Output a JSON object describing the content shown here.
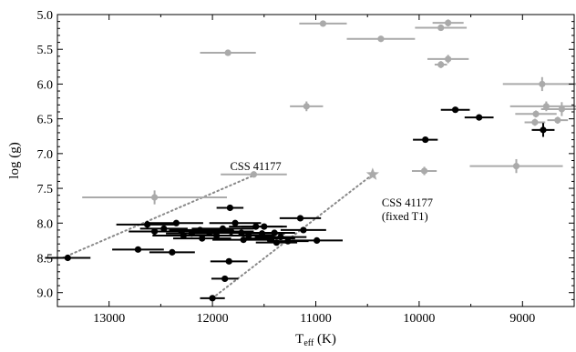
{
  "chart_data": {
    "type": "scatter",
    "title": "",
    "xlabel": "T",
    "xlabel_sub": "eff",
    "xlabel_unit": " (K)",
    "ylabel": "log (g)",
    "xlim": [
      13500,
      8500
    ],
    "ylim": [
      5.0,
      9.2
    ],
    "x_inverted": true,
    "y_inverted": true,
    "xticks": [
      13000,
      12000,
      11000,
      10000,
      9000
    ],
    "yticks": [
      5.0,
      5.5,
      6.0,
      6.5,
      7.0,
      7.5,
      8.0,
      8.5,
      9.0
    ],
    "xtick_labels": [
      "13000",
      "12000",
      "11000",
      "10000",
      "9000"
    ],
    "ytick_labels": [
      "5.0",
      "5.5",
      "6.0",
      "6.5",
      "7.0",
      "7.5",
      "8.0",
      "8.5",
      "9.0"
    ],
    "grid": false,
    "colors": {
      "black_series": "#000000",
      "gray_series": "#aaaaaa",
      "line": "#888888"
    },
    "annotations": [
      {
        "id": "css1",
        "lines": [
          "CSS 41177"
        ],
        "x": 11900,
        "y": 7.2
      },
      {
        "id": "css2",
        "lines": [
          "CSS 41177",
          "(fixed T1)"
        ],
        "x": 10450,
        "y": 7.5
      }
    ],
    "lines": [
      {
        "name": "css-line-1",
        "points": [
          [
            13450,
            8.5
          ],
          [
            11580,
            7.3
          ]
        ],
        "style": "dotted"
      },
      {
        "name": "css-line-2",
        "points": [
          [
            12000,
            9.08
          ],
          [
            10450,
            7.3
          ]
        ],
        "style": "dotted"
      }
    ],
    "star": {
      "x": 10450,
      "y": 7.3
    },
    "series": [
      {
        "color": "black",
        "points": [
          {
            "x": 13400,
            "y": 8.5,
            "xerr": 220,
            "yerr": 0.04
          },
          {
            "x": 12720,
            "y": 8.38,
            "xerr": 250,
            "yerr": 0.04
          },
          {
            "x": 12390,
            "y": 8.42,
            "xerr": 220,
            "yerr": 0.04
          },
          {
            "x": 12000,
            "y": 9.08,
            "xerr": 120,
            "yerr": 0.04
          },
          {
            "x": 11880,
            "y": 8.8,
            "xerr": 130,
            "yerr": 0.04
          },
          {
            "x": 11840,
            "y": 8.55,
            "xerr": 180,
            "yerr": 0.04
          },
          {
            "x": 11830,
            "y": 7.78,
            "xerr": 130,
            "yerr": 0.04
          },
          {
            "x": 12630,
            "y": 8.02,
            "xerr": 300,
            "yerr": 0.05
          },
          {
            "x": 12560,
            "y": 8.12,
            "xerr": 250,
            "yerr": 0.05
          },
          {
            "x": 12470,
            "y": 8.08,
            "xerr": 230,
            "yerr": 0.04
          },
          {
            "x": 12350,
            "y": 8.0,
            "xerr": 260,
            "yerr": 0.04
          },
          {
            "x": 12280,
            "y": 8.18,
            "xerr": 300,
            "yerr": 0.04
          },
          {
            "x": 12200,
            "y": 8.15,
            "xerr": 250,
            "yerr": 0.04
          },
          {
            "x": 12120,
            "y": 8.1,
            "xerr": 300,
            "yerr": 0.04
          },
          {
            "x": 12030,
            "y": 8.14,
            "xerr": 200,
            "yerr": 0.04
          },
          {
            "x": 11960,
            "y": 8.18,
            "xerr": 220,
            "yerr": 0.04
          },
          {
            "x": 11900,
            "y": 8.08,
            "xerr": 300,
            "yerr": 0.04
          },
          {
            "x": 11820,
            "y": 8.12,
            "xerr": 220,
            "yerr": 0.04
          },
          {
            "x": 11780,
            "y": 8.0,
            "xerr": 250,
            "yerr": 0.04
          },
          {
            "x": 11720,
            "y": 8.14,
            "xerr": 200,
            "yerr": 0.04
          },
          {
            "x": 11650,
            "y": 8.18,
            "xerr": 250,
            "yerr": 0.04
          },
          {
            "x": 11580,
            "y": 8.05,
            "xerr": 260,
            "yerr": 0.04
          },
          {
            "x": 11520,
            "y": 8.15,
            "xerr": 220,
            "yerr": 0.04
          },
          {
            "x": 11450,
            "y": 8.22,
            "xerr": 250,
            "yerr": 0.04
          },
          {
            "x": 11400,
            "y": 8.14,
            "xerr": 200,
            "yerr": 0.04
          },
          {
            "x": 11380,
            "y": 8.28,
            "xerr": 200,
            "yerr": 0.04
          },
          {
            "x": 11340,
            "y": 8.2,
            "xerr": 250,
            "yerr": 0.04
          },
          {
            "x": 11270,
            "y": 8.26,
            "xerr": 200,
            "yerr": 0.04
          },
          {
            "x": 11120,
            "y": 8.1,
            "xerr": 220,
            "yerr": 0.04
          },
          {
            "x": 11150,
            "y": 7.93,
            "xerr": 200,
            "yerr": 0.04
          },
          {
            "x": 10990,
            "y": 8.25,
            "xerr": 250,
            "yerr": 0.04
          },
          {
            "x": 12300,
            "y": 8.12,
            "xerr": 300,
            "yerr": 0.04
          },
          {
            "x": 12100,
            "y": 8.22,
            "xerr": 280,
            "yerr": 0.04
          },
          {
            "x": 11700,
            "y": 8.24,
            "xerr": 300,
            "yerr": 0.04
          },
          {
            "x": 11500,
            "y": 8.05,
            "xerr": 220,
            "yerr": 0.04
          },
          {
            "x": 9940,
            "y": 6.8,
            "xerr": 120,
            "yerr": 0.04
          },
          {
            "x": 9650,
            "y": 6.37,
            "xerr": 140,
            "yerr": 0.04
          },
          {
            "x": 9420,
            "y": 6.48,
            "xerr": 140,
            "yerr": 0.04
          },
          {
            "x": 8800,
            "y": 6.66,
            "xerr": 110,
            "yerr": 0.1
          }
        ]
      },
      {
        "color": "gray",
        "points": [
          {
            "x": 12560,
            "y": 7.63,
            "xerr": 700,
            "yerr": 0.1
          },
          {
            "x": 11850,
            "y": 5.55,
            "xerr": 270,
            "yerr": 0.04
          },
          {
            "x": 11600,
            "y": 7.3,
            "xerr": 320,
            "yerr": 0.04
          },
          {
            "x": 11090,
            "y": 6.32,
            "xerr": 160,
            "yerr": 0.07
          },
          {
            "x": 10930,
            "y": 5.13,
            "xerr": 230,
            "yerr": 0.04
          },
          {
            "x": 10370,
            "y": 5.35,
            "xerr": 330,
            "yerr": 0.04
          },
          {
            "x": 9950,
            "y": 7.25,
            "xerr": 120,
            "yerr": 0.06
          },
          {
            "x": 9790,
            "y": 5.19,
            "xerr": 250,
            "yerr": 0.04
          },
          {
            "x": 9720,
            "y": 5.12,
            "xerr": 150,
            "yerr": 0.05
          },
          {
            "x": 9720,
            "y": 5.64,
            "xerr": 200,
            "yerr": 0.06
          },
          {
            "x": 9790,
            "y": 5.72,
            "xerr": 60,
            "yerr": 0.05
          },
          {
            "x": 9060,
            "y": 7.18,
            "xerr": 450,
            "yerr": 0.1
          },
          {
            "x": 8810,
            "y": 6.0,
            "xerr": 380,
            "yerr": 0.1
          },
          {
            "x": 8770,
            "y": 6.32,
            "xerr": 350,
            "yerr": 0.07
          },
          {
            "x": 8620,
            "y": 6.36,
            "xerr": 200,
            "yerr": 0.1
          },
          {
            "x": 8870,
            "y": 6.43,
            "xerr": 200,
            "yerr": 0.05
          },
          {
            "x": 8880,
            "y": 6.55,
            "xerr": 100,
            "yerr": 0.05
          },
          {
            "x": 8660,
            "y": 6.52,
            "xerr": 100,
            "yerr": 0.05
          }
        ]
      }
    ]
  }
}
